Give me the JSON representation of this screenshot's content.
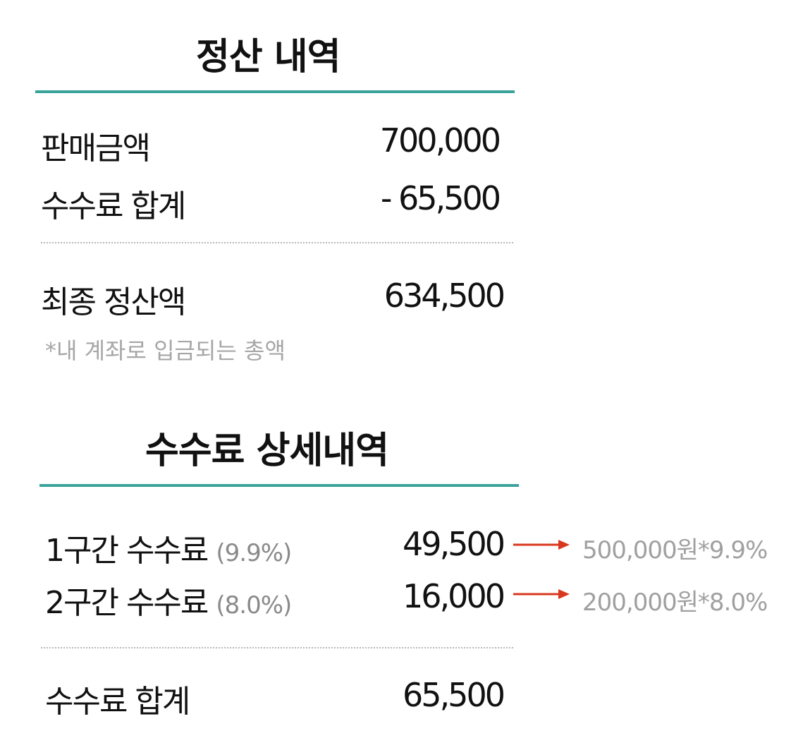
{
  "settlement": {
    "title": "정산 내역",
    "sales_amount": {
      "label": "판매금액",
      "value": "700,000"
    },
    "fee_total": {
      "label": "수수료 합계",
      "value": "- 65,500"
    },
    "final_amount": {
      "label": "최종 정산액",
      "value": "634,500"
    },
    "note": "*내 계좌로 입금되는 총액"
  },
  "fee_detail": {
    "title": "수수료 상세내역",
    "tier1": {
      "label": "1구간 수수료",
      "rate": "(9.9%)",
      "value": "49,500",
      "calc": "500,000원*9.9%"
    },
    "tier2": {
      "label": "2구간 수수료",
      "rate": "(8.0%)",
      "value": "16,000",
      "calc": "200,000원*8.0%"
    },
    "total": {
      "label": "수수료 합계",
      "value": "65,500"
    }
  },
  "colors": {
    "accent_rule": "#3aa39a",
    "arrow": "#d9381e",
    "muted_text": "#a6a6a6"
  }
}
